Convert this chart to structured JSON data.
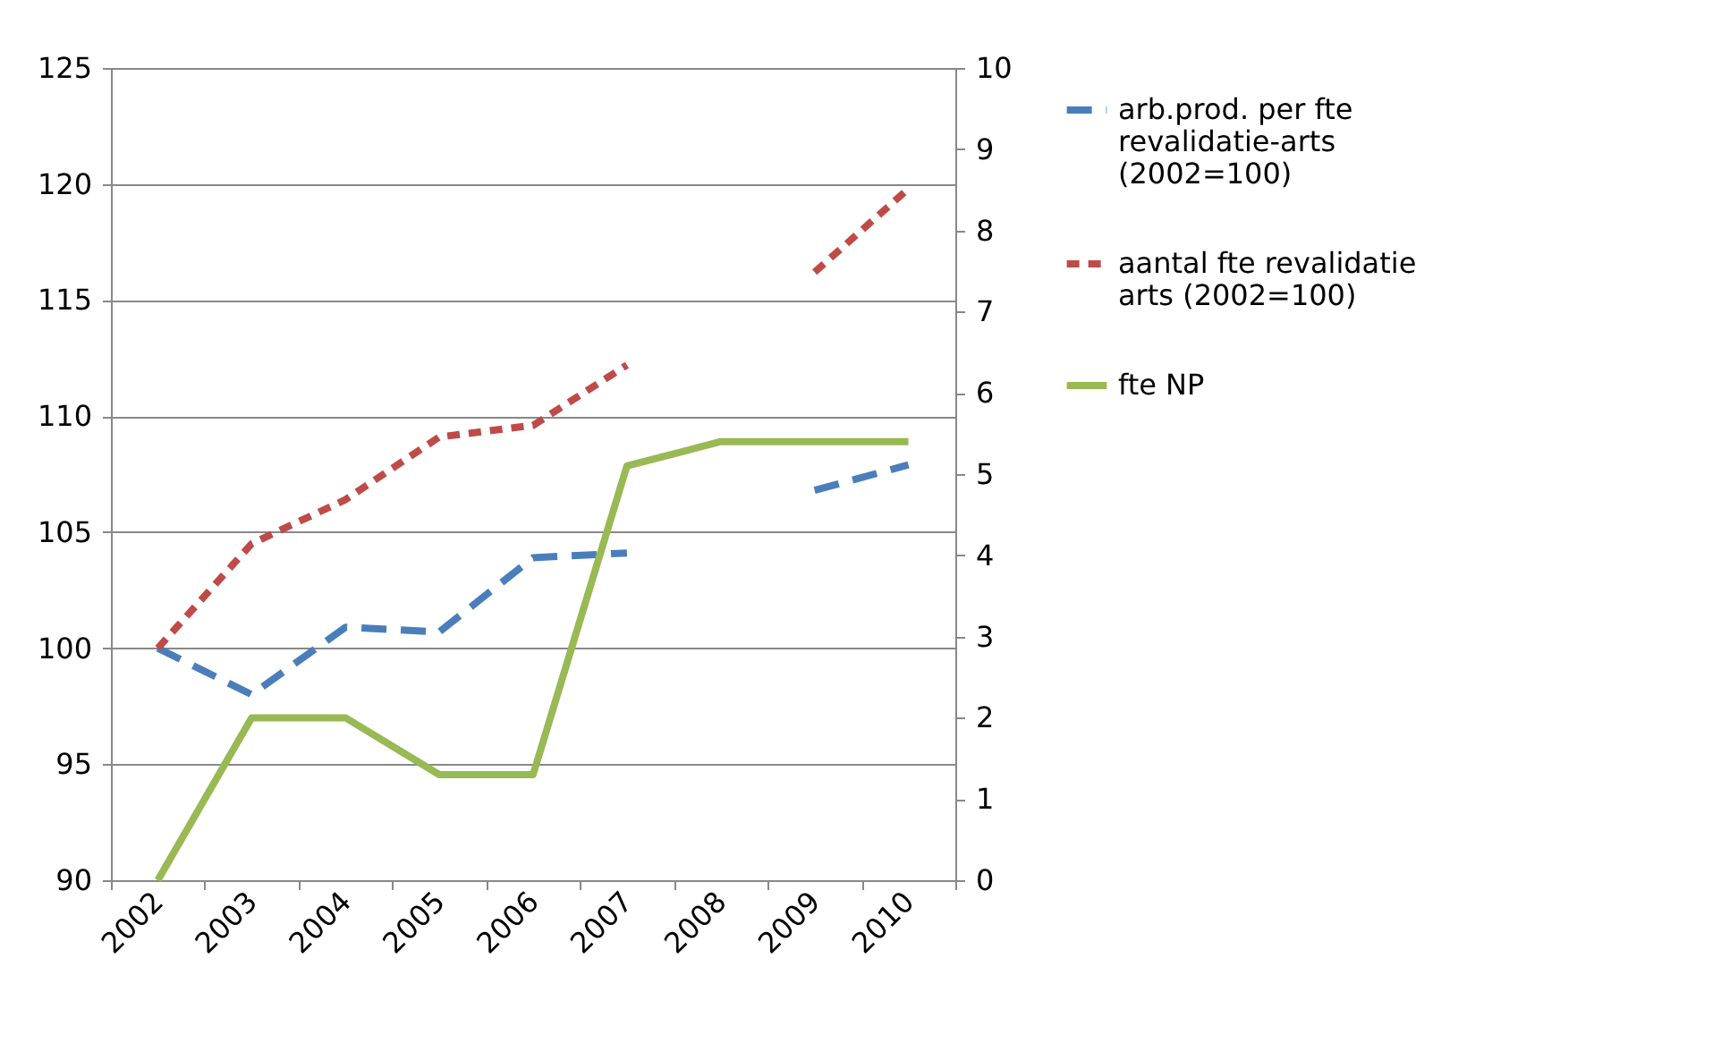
{
  "chart_data": {
    "type": "line",
    "categories": [
      "2002",
      "2003",
      "2004",
      "2005",
      "2006",
      "2007",
      "2008",
      "2009",
      "2010"
    ],
    "series": [
      {
        "name": "arb.prod. per fte revalidatie-arts (2002=100)",
        "color": "#4a7ebb",
        "line_style": "dashed",
        "axis": "y",
        "values": [
          100,
          98.0,
          100.9,
          100.7,
          103.9,
          104.1,
          null,
          106.8,
          107.9
        ]
      },
      {
        "name": "aantal fte revalidatie arts (2002=100)",
        "color": "#be4b48",
        "line_style": "dotted",
        "axis": "y",
        "values": [
          100,
          104.5,
          106.4,
          109.1,
          109.6,
          112.2,
          null,
          116.2,
          119.8
        ]
      },
      {
        "name": "fte NP",
        "color": "#98b954",
        "line_style": "solid",
        "axis": "y2",
        "values": [
          0,
          2.0,
          2.0,
          1.3,
          1.3,
          5.1,
          5.4,
          5.4,
          5.4
        ]
      }
    ],
    "ylim": [
      90,
      125
    ],
    "yticks": [
      90,
      95,
      100,
      105,
      110,
      115,
      120,
      125
    ],
    "y2lim": [
      0,
      10
    ],
    "y2ticks": [
      0,
      1,
      2,
      3,
      4,
      5,
      6,
      7,
      8,
      9,
      10
    ],
    "grid": "y",
    "legend": "right"
  }
}
